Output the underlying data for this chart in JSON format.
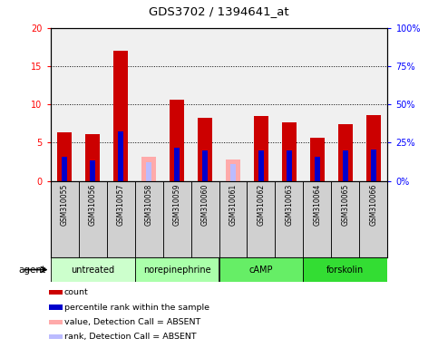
{
  "title": "GDS3702 / 1394641_at",
  "samples": [
    "GSM310055",
    "GSM310056",
    "GSM310057",
    "GSM310058",
    "GSM310059",
    "GSM310060",
    "GSM310061",
    "GSM310062",
    "GSM310063",
    "GSM310064",
    "GSM310065",
    "GSM310066"
  ],
  "count_values": [
    6.4,
    6.1,
    17.0,
    0.0,
    10.6,
    8.3,
    0.0,
    8.5,
    7.7,
    5.6,
    7.4,
    8.6
  ],
  "count_absent_values": [
    0.0,
    0.0,
    0.0,
    3.2,
    0.0,
    0.0,
    2.8,
    0.0,
    0.0,
    0.0,
    0.0,
    0.0
  ],
  "rank_values_pct": [
    16.0,
    13.5,
    32.5,
    0.0,
    22.0,
    20.0,
    0.0,
    20.0,
    20.0,
    15.5,
    20.0,
    20.5
  ],
  "rank_absent_pct": [
    0.0,
    0.0,
    0.0,
    12.5,
    0.0,
    0.0,
    11.0,
    0.0,
    0.0,
    0.0,
    0.0,
    0.0
  ],
  "ylim_left": [
    0,
    20
  ],
  "ylim_right": [
    0,
    100
  ],
  "yticks_left": [
    0,
    5,
    10,
    15,
    20
  ],
  "ytick_labels_left": [
    "0",
    "5",
    "10",
    "15",
    "20"
  ],
  "yticks_right": [
    0,
    25,
    50,
    75,
    100
  ],
  "ytick_labels_right": [
    "0%",
    "25%",
    "50%",
    "75%",
    "100%"
  ],
  "color_count": "#cc0000",
  "color_rank": "#0000cc",
  "color_count_absent": "#ffaaaa",
  "color_rank_absent": "#bbbbff",
  "agent_groups": [
    {
      "label": "untreated",
      "start": 0,
      "end": 3,
      "color": "#ccffcc"
    },
    {
      "label": "norepinephrine",
      "start": 3,
      "end": 6,
      "color": "#aaffaa"
    },
    {
      "label": "cAMP",
      "start": 6,
      "end": 9,
      "color": "#66ee66"
    },
    {
      "label": "forskolin",
      "start": 9,
      "end": 12,
      "color": "#33dd33"
    }
  ],
  "legend_labels": [
    "count",
    "percentile rank within the sample",
    "value, Detection Call = ABSENT",
    "rank, Detection Call = ABSENT"
  ],
  "legend_colors": [
    "#cc0000",
    "#0000cc",
    "#ffaaaa",
    "#bbbbff"
  ],
  "bar_width": 0.5,
  "count_bar_width": 0.5,
  "rank_bar_width": 0.18,
  "background_color": "#ffffff",
  "plot_bg_color": "#f0f0f0",
  "sample_box_color": "#d0d0d0"
}
